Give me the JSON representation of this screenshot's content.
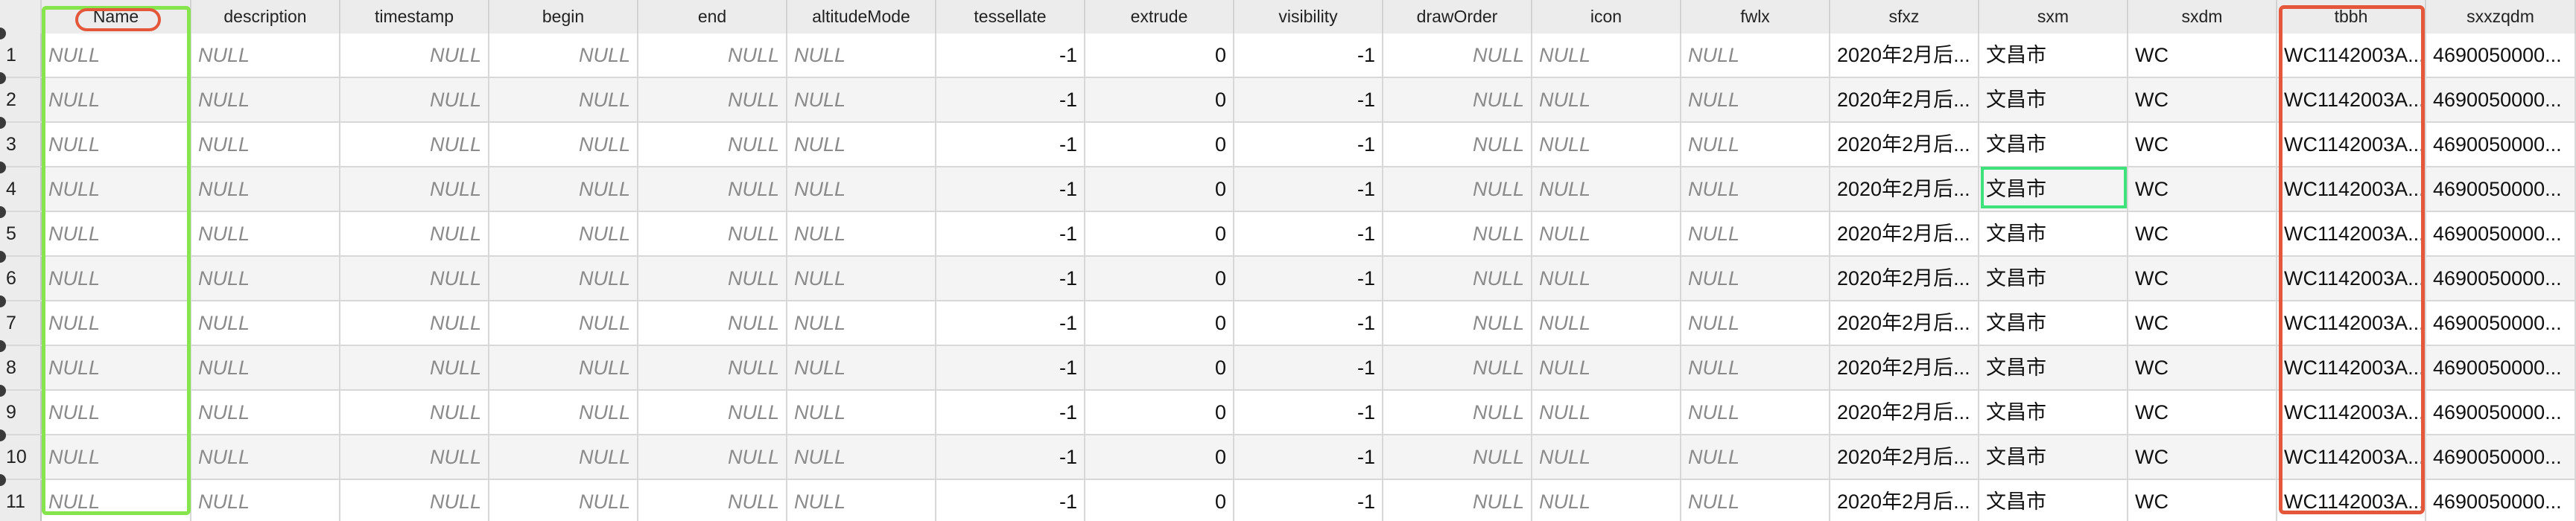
{
  "columns": [
    "Name",
    "description",
    "timestamp",
    "begin",
    "end",
    "altitudeMode",
    "tessellate",
    "extrude",
    "visibility",
    "drawOrder",
    "icon",
    "fwlx",
    "sfxz",
    "sxm",
    "sxdm",
    "tbbh",
    "sxxzqdm"
  ],
  "rows": [
    {
      "n": "1",
      "cells": [
        "NULL",
        "NULL",
        "NULL",
        "NULL",
        "NULL",
        "NULL",
        "-1",
        "0",
        "-1",
        "NULL",
        "NULL",
        "NULL",
        "2020年2月后...",
        "文昌市",
        "WC",
        "WC1142003A...",
        "4690050000..."
      ]
    },
    {
      "n": "2",
      "cells": [
        "NULL",
        "NULL",
        "NULL",
        "NULL",
        "NULL",
        "NULL",
        "-1",
        "0",
        "-1",
        "NULL",
        "NULL",
        "NULL",
        "2020年2月后...",
        "文昌市",
        "WC",
        "WC1142003A...",
        "4690050000..."
      ]
    },
    {
      "n": "3",
      "cells": [
        "NULL",
        "NULL",
        "NULL",
        "NULL",
        "NULL",
        "NULL",
        "-1",
        "0",
        "-1",
        "NULL",
        "NULL",
        "NULL",
        "2020年2月后...",
        "文昌市",
        "WC",
        "WC1142003A...",
        "4690050000..."
      ]
    },
    {
      "n": "4",
      "cells": [
        "NULL",
        "NULL",
        "NULL",
        "NULL",
        "NULL",
        "NULL",
        "-1",
        "0",
        "-1",
        "NULL",
        "NULL",
        "NULL",
        "2020年2月后...",
        "文昌市",
        "WC",
        "WC1142003A...",
        "4690050000..."
      ]
    },
    {
      "n": "5",
      "cells": [
        "NULL",
        "NULL",
        "NULL",
        "NULL",
        "NULL",
        "NULL",
        "-1",
        "0",
        "-1",
        "NULL",
        "NULL",
        "NULL",
        "2020年2月后...",
        "文昌市",
        "WC",
        "WC1142003A...",
        "4690050000..."
      ]
    },
    {
      "n": "6",
      "cells": [
        "NULL",
        "NULL",
        "NULL",
        "NULL",
        "NULL",
        "NULL",
        "-1",
        "0",
        "-1",
        "NULL",
        "NULL",
        "NULL",
        "2020年2月后...",
        "文昌市",
        "WC",
        "WC1142003A...",
        "4690050000..."
      ]
    },
    {
      "n": "7",
      "cells": [
        "NULL",
        "NULL",
        "NULL",
        "NULL",
        "NULL",
        "NULL",
        "-1",
        "0",
        "-1",
        "NULL",
        "NULL",
        "NULL",
        "2020年2月后...",
        "文昌市",
        "WC",
        "WC1142003A...",
        "4690050000..."
      ]
    },
    {
      "n": "8",
      "cells": [
        "NULL",
        "NULL",
        "NULL",
        "NULL",
        "NULL",
        "NULL",
        "-1",
        "0",
        "-1",
        "NULL",
        "NULL",
        "NULL",
        "2020年2月后...",
        "文昌市",
        "WC",
        "WC1142003A...",
        "4690050000..."
      ]
    },
    {
      "n": "9",
      "cells": [
        "NULL",
        "NULL",
        "NULL",
        "NULL",
        "NULL",
        "NULL",
        "-1",
        "0",
        "-1",
        "NULL",
        "NULL",
        "NULL",
        "2020年2月后...",
        "文昌市",
        "WC",
        "WC1142003A...",
        "4690050000..."
      ]
    },
    {
      "n": "10",
      "cells": [
        "NULL",
        "NULL",
        "NULL",
        "NULL",
        "NULL",
        "NULL",
        "-1",
        "0",
        "-1",
        "NULL",
        "NULL",
        "NULL",
        "2020年2月后...",
        "文昌市",
        "WC",
        "WC1142003A...",
        "4690050000..."
      ]
    },
    {
      "n": "11",
      "cells": [
        "NULL",
        "NULL",
        "NULL",
        "NULL",
        "NULL",
        "NULL",
        "-1",
        "0",
        "-1",
        "NULL",
        "NULL",
        "NULL",
        "2020年2月后...",
        "文昌市",
        "WC",
        "WC1142003A...",
        "4690050000..."
      ]
    }
  ],
  "highlight_colors": {
    "green": "#86e44c",
    "red": "#e4573a",
    "selected_cell": "#3ee27a"
  },
  "selected_cell": {
    "row": "4",
    "column": "sxm"
  }
}
